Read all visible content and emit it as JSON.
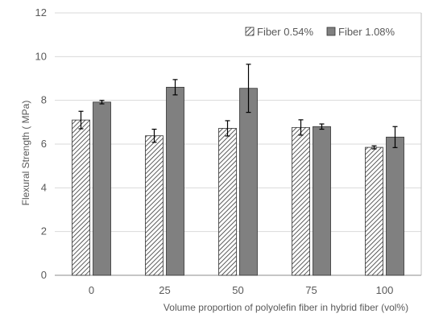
{
  "chart_data": {
    "type": "bar",
    "title": "",
    "xlabel": "Volume proportion of polyolefin fiber in hybrid fiber (vol%)",
    "ylabel": "Flexural Strength ( MPa)",
    "categories": [
      "0",
      "25",
      "50",
      "75",
      "100"
    ],
    "ylim": [
      0,
      12
    ],
    "yticks": [
      0,
      2,
      4,
      6,
      8,
      10,
      12
    ],
    "grid": true,
    "legend_position": "top-right",
    "series": [
      {
        "name": "Fiber 0.54%",
        "pattern": "diagonal-hatch",
        "color": "#404040",
        "values": [
          7.1,
          6.38,
          6.72,
          6.76,
          5.85
        ],
        "errors": [
          0.4,
          0.3,
          0.35,
          0.35,
          0.07
        ]
      },
      {
        "name": "Fiber 1.08%",
        "pattern": "solid",
        "color": "#808080",
        "values": [
          7.92,
          8.6,
          8.55,
          6.8,
          6.32
        ],
        "errors": [
          0.08,
          0.35,
          1.1,
          0.12,
          0.48
        ]
      }
    ]
  }
}
